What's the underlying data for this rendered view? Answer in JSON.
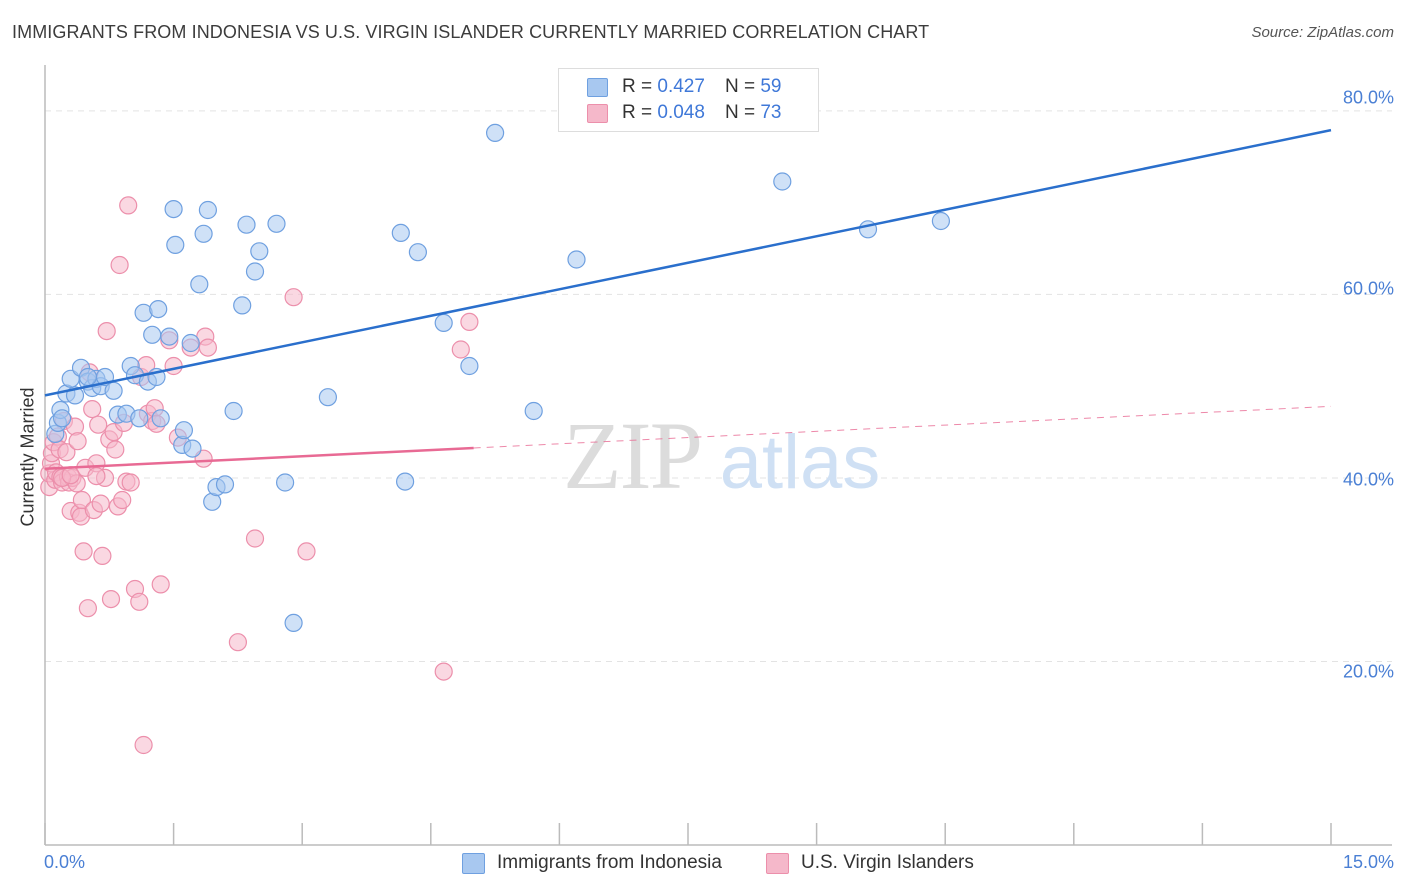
{
  "title": "IMMIGRANTS FROM INDONESIA VS U.S. VIRGIN ISLANDER CURRENTLY MARRIED CORRELATION CHART",
  "source": "Source: ZipAtlas.com",
  "watermark": {
    "zip": "ZIP",
    "atlas": "atlas"
  },
  "colors": {
    "blue_fill": "#a8c8f0",
    "blue_stroke": "#6fa0e0",
    "blue_line": "#2a6fcc",
    "pink_fill": "#f5b8ca",
    "pink_stroke": "#ec8fab",
    "pink_line": "#e86a94",
    "axis_text": "#4a7fd4",
    "grid": "#e3e3e3"
  },
  "legend": {
    "items": [
      {
        "r_label": "R =",
        "r_value": "0.427",
        "n_label": "N =",
        "n_value": "59"
      },
      {
        "r_label": "R =",
        "r_value": "0.048",
        "n_label": "N =",
        "n_value": "73"
      }
    ]
  },
  "bottom_legend": [
    "Immigrants from Indonesia",
    "U.S. Virgin Islanders"
  ],
  "chart_data": {
    "type": "scatter",
    "title": "IMMIGRANTS FROM INDONESIA VS U.S. VIRGIN ISLANDER CURRENTLY MARRIED CORRELATION CHART",
    "xlabel": "",
    "ylabel": "Currently Married",
    "xlim": [
      0,
      15
    ],
    "ylim": [
      0,
      85
    ],
    "x_tick_labels": [
      "0.0%",
      "15.0%"
    ],
    "y_ticks": [
      20,
      40,
      60,
      80
    ],
    "y_tick_labels": [
      "20.0%",
      "40.0%",
      "60.0%",
      "80.0%"
    ],
    "grid": true,
    "series": [
      {
        "name": "Immigrants from Indonesia",
        "R": 0.427,
        "N": 59,
        "trend": {
          "x0": 0,
          "y0": 49.0,
          "x1": 15,
          "y1": 77.9,
          "dashed_from": null
        },
        "points": [
          [
            0.12,
            44.8
          ],
          [
            0.15,
            46.0
          ],
          [
            0.18,
            47.4
          ],
          [
            0.2,
            46.5
          ],
          [
            0.25,
            49.2
          ],
          [
            0.3,
            50.8
          ],
          [
            0.35,
            49.0
          ],
          [
            0.42,
            52.0
          ],
          [
            0.5,
            50.5
          ],
          [
            0.55,
            49.8
          ],
          [
            0.6,
            50.8
          ],
          [
            0.65,
            50.0
          ],
          [
            0.7,
            51.0
          ],
          [
            0.8,
            49.5
          ],
          [
            0.85,
            46.9
          ],
          [
            0.95,
            47.0
          ],
          [
            1.0,
            52.2
          ],
          [
            1.05,
            51.2
          ],
          [
            1.1,
            46.5
          ],
          [
            1.15,
            58.0
          ],
          [
            1.2,
            50.5
          ],
          [
            1.25,
            55.6
          ],
          [
            1.3,
            51.0
          ],
          [
            1.32,
            58.4
          ],
          [
            1.35,
            46.5
          ],
          [
            1.45,
            55.4
          ],
          [
            1.5,
            69.3
          ],
          [
            1.52,
            65.4
          ],
          [
            1.6,
            43.6
          ],
          [
            1.62,
            45.2
          ],
          [
            1.7,
            54.7
          ],
          [
            1.72,
            43.2
          ],
          [
            1.8,
            61.1
          ],
          [
            1.85,
            66.6
          ],
          [
            1.9,
            69.2
          ],
          [
            1.95,
            37.4
          ],
          [
            2.0,
            39.0
          ],
          [
            2.1,
            39.3
          ],
          [
            2.2,
            47.3
          ],
          [
            2.3,
            58.8
          ],
          [
            2.35,
            67.6
          ],
          [
            2.45,
            62.5
          ],
          [
            2.5,
            64.7
          ],
          [
            2.7,
            67.7
          ],
          [
            2.8,
            39.5
          ],
          [
            2.9,
            24.2
          ],
          [
            3.3,
            48.8
          ],
          [
            4.15,
            66.7
          ],
          [
            4.2,
            39.6
          ],
          [
            4.35,
            64.6
          ],
          [
            4.65,
            56.9
          ],
          [
            4.95,
            52.2
          ],
          [
            5.25,
            77.6
          ],
          [
            5.7,
            47.3
          ],
          [
            6.2,
            63.8
          ],
          [
            8.6,
            72.3
          ],
          [
            9.6,
            67.1
          ],
          [
            10.45,
            68.0
          ],
          [
            0.5,
            51.0
          ]
        ]
      },
      {
        "name": "U.S. Virgin Islanders",
        "R": 0.048,
        "N": 73,
        "trend": {
          "x0": 0,
          "y0": 41.0,
          "x1": 15,
          "y1": 47.8,
          "dashed_from": 5.0
        },
        "points": [
          [
            0.05,
            39.0
          ],
          [
            0.05,
            40.5
          ],
          [
            0.07,
            41.6
          ],
          [
            0.08,
            42.7
          ],
          [
            0.1,
            43.9
          ],
          [
            0.12,
            39.8
          ],
          [
            0.13,
            40.6
          ],
          [
            0.15,
            44.5
          ],
          [
            0.17,
            43.1
          ],
          [
            0.18,
            40.1
          ],
          [
            0.2,
            39.5
          ],
          [
            0.22,
            46.2
          ],
          [
            0.25,
            42.8
          ],
          [
            0.27,
            40.1
          ],
          [
            0.28,
            39.5
          ],
          [
            0.3,
            36.4
          ],
          [
            0.32,
            40.0
          ],
          [
            0.35,
            45.6
          ],
          [
            0.37,
            39.4
          ],
          [
            0.38,
            44.0
          ],
          [
            0.4,
            36.2
          ],
          [
            0.42,
            35.8
          ],
          [
            0.43,
            37.6
          ],
          [
            0.45,
            32.0
          ],
          [
            0.47,
            41.1
          ],
          [
            0.5,
            25.8
          ],
          [
            0.52,
            51.5
          ],
          [
            0.55,
            47.5
          ],
          [
            0.57,
            36.5
          ],
          [
            0.6,
            41.6
          ],
          [
            0.62,
            45.8
          ],
          [
            0.65,
            37.2
          ],
          [
            0.67,
            31.5
          ],
          [
            0.7,
            40.0
          ],
          [
            0.72,
            56.0
          ],
          [
            0.75,
            44.2
          ],
          [
            0.77,
            26.8
          ],
          [
            0.8,
            45.0
          ],
          [
            0.82,
            43.1
          ],
          [
            0.85,
            36.9
          ],
          [
            0.87,
            63.2
          ],
          [
            0.9,
            37.6
          ],
          [
            0.92,
            46.0
          ],
          [
            0.95,
            39.6
          ],
          [
            0.97,
            69.7
          ],
          [
            1.0,
            39.5
          ],
          [
            1.05,
            27.9
          ],
          [
            1.1,
            26.5
          ],
          [
            1.12,
            51.0
          ],
          [
            1.15,
            10.9
          ],
          [
            1.18,
            52.3
          ],
          [
            1.2,
            47.0
          ],
          [
            1.25,
            46.2
          ],
          [
            1.28,
            47.6
          ],
          [
            1.3,
            45.9
          ],
          [
            1.35,
            28.4
          ],
          [
            1.45,
            55.0
          ],
          [
            1.5,
            52.2
          ],
          [
            1.55,
            44.4
          ],
          [
            1.7,
            54.2
          ],
          [
            1.85,
            42.1
          ],
          [
            1.87,
            55.4
          ],
          [
            1.9,
            54.2
          ],
          [
            2.25,
            22.1
          ],
          [
            2.45,
            33.4
          ],
          [
            2.9,
            59.7
          ],
          [
            3.05,
            32.0
          ],
          [
            4.65,
            18.9
          ],
          [
            4.85,
            54.0
          ],
          [
            4.95,
            57.0
          ],
          [
            0.2,
            40.0
          ],
          [
            0.6,
            40.2
          ],
          [
            0.3,
            40.3
          ]
        ]
      }
    ]
  }
}
